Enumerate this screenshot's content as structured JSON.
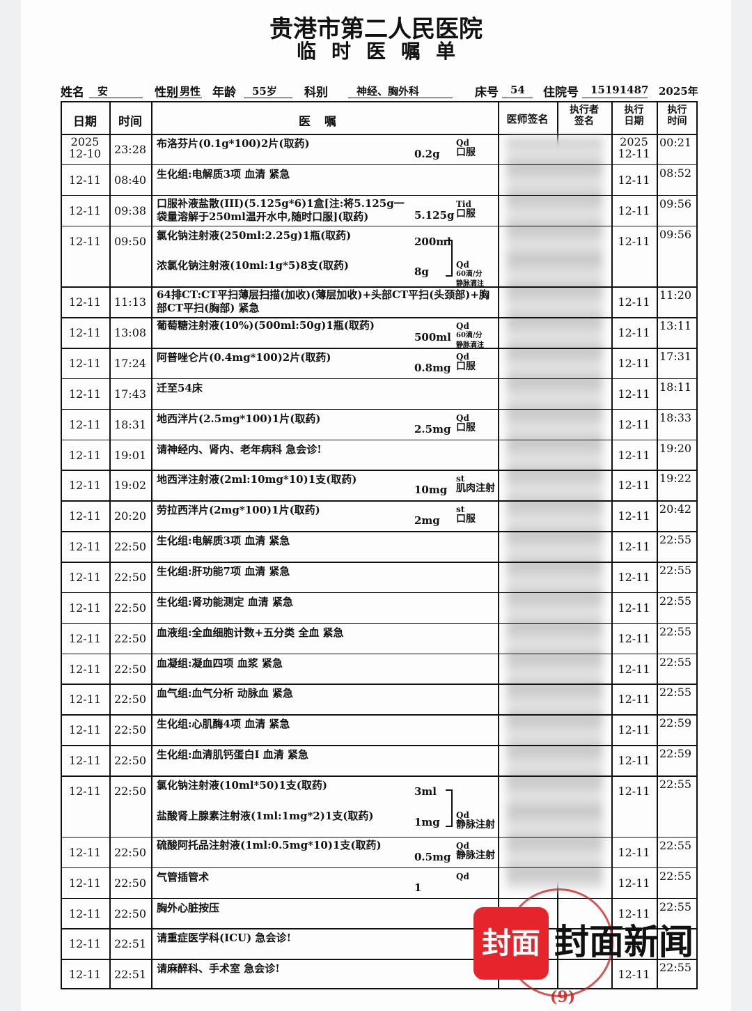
{
  "header": {
    "hospital": "贵港市第二人民医院",
    "form_title": "临时医嘱单"
  },
  "patient": [
    {
      "label": "姓名",
      "value": "安"
    },
    {
      "label": "性别",
      "value": "男性"
    },
    {
      "label": "年龄",
      "value": "55岁"
    },
    {
      "label": "科别",
      "value": "神经、胸外科"
    },
    {
      "label": "床号",
      "value": "54"
    },
    {
      "label": "住院号",
      "value": "15191487"
    },
    {
      "value": "2025年"
    }
  ],
  "table": {
    "columns": [
      "日期",
      "时间",
      "医嘱",
      "医师签名",
      "执行者签名",
      "执行日期",
      "执行时间"
    ],
    "rows": [
      {
        "date": [
          "2025",
          "12-10"
        ],
        "time": "23:28",
        "orders": [
          {
            "text": "布洛芬片(0.1g*100)2片(取药)",
            "dose": "0.2g"
          }
        ],
        "usage": [
          "Qd",
          "口服"
        ],
        "exec_date": [
          "2025",
          "12-11"
        ],
        "exec_time": "00:21"
      },
      {
        "date": [
          "12-11"
        ],
        "time": "08:40",
        "orders": [
          {
            "text": "生化组:电解质3项 血清 紧急"
          }
        ],
        "exec_date": [
          "12-11"
        ],
        "exec_time": "08:52"
      },
      {
        "date": [
          "12-11"
        ],
        "time": "09:38",
        "orders": [
          {
            "text": "口服补液盐散(III)(5.125g*6)1盒[注:将5.125g一袋量溶解于250ml温开水中,随时口服](取药)",
            "dose": "5.125g"
          }
        ],
        "usage": [
          "Tid",
          "口服"
        ],
        "exec_date": [
          "12-11"
        ],
        "exec_time": "09:56"
      },
      {
        "date": [
          "12-11"
        ],
        "time": "09:50",
        "orders": [
          {
            "text": "氯化钠注射液(250ml:2.25g)1瓶(取药)",
            "dose": "200ml"
          },
          {
            "text": "浓氯化钠注射液(10ml:1g*5)8支(取药)",
            "dose": "8g"
          }
        ],
        "usage": [
          "Qd",
          "60滴/分",
          "静脉滴注"
        ],
        "exec_date": [
          "12-11"
        ],
        "exec_time": "09:56"
      },
      {
        "date": [
          "12-11"
        ],
        "time": "11:13",
        "orders": [
          {
            "text": "64排CT:CT平扫薄层扫描(加收)(薄层加收)+头部CT平扫(头颈部)+胸部CT平扫(胸部) 紧急"
          }
        ],
        "exec_date": [
          "12-11"
        ],
        "exec_time": "11:20"
      },
      {
        "date": [
          "12-11"
        ],
        "time": "13:08",
        "orders": [
          {
            "text": "葡萄糖注射液(10%)(500ml:50g)1瓶(取药)",
            "dose": "500ml"
          }
        ],
        "usage": [
          "Qd",
          "60滴/分",
          "静脉滴注"
        ],
        "exec_date": [
          "12-11"
        ],
        "exec_time": "13:11"
      },
      {
        "date": [
          "12-11"
        ],
        "time": "17:24",
        "orders": [
          {
            "text": "阿普唑仑片(0.4mg*100)2片(取药)",
            "dose": "0.8mg"
          }
        ],
        "usage": [
          "Qd",
          "口服"
        ],
        "exec_date": [
          "12-11"
        ],
        "exec_time": "17:31"
      },
      {
        "date": [
          "12-11"
        ],
        "time": "17:43",
        "orders": [
          {
            "text": "迁至54床"
          }
        ],
        "exec_date": [
          "12-11"
        ],
        "exec_time": "18:11"
      },
      {
        "date": [
          "12-11"
        ],
        "time": "18:31",
        "orders": [
          {
            "text": "地西泮片(2.5mg*100)1片(取药)",
            "dose": "2.5mg"
          }
        ],
        "usage": [
          "Qd",
          "口服"
        ],
        "exec_date": [
          "12-11"
        ],
        "exec_time": "18:33"
      },
      {
        "date": [
          "12-11"
        ],
        "time": "19:01",
        "orders": [
          {
            "text": "请神经内、肾内、老年病科 急会诊!"
          }
        ],
        "exec_date": [
          "12-11"
        ],
        "exec_time": "19:20"
      },
      {
        "date": [
          "12-11"
        ],
        "time": "19:02",
        "orders": [
          {
            "text": "地西泮注射液(2ml:10mg*10)1支(取药)",
            "dose": "10mg"
          }
        ],
        "usage": [
          "st",
          "肌肉注射"
        ],
        "exec_date": [
          "12-11"
        ],
        "exec_time": "19:22"
      },
      {
        "date": [
          "12-11"
        ],
        "time": "20:20",
        "orders": [
          {
            "text": "劳拉西泮片(2mg*100)1片(取药)",
            "dose": "2mg"
          }
        ],
        "usage": [
          "st",
          "口服"
        ],
        "exec_date": [
          "12-11"
        ],
        "exec_time": "20:42"
      },
      {
        "date": [
          "12-11"
        ],
        "time": "22:50",
        "orders": [
          {
            "text": "生化组:电解质3项 血清 紧急"
          }
        ],
        "exec_date": [
          "12-11"
        ],
        "exec_time": "22:55"
      },
      {
        "date": [
          "12-11"
        ],
        "time": "22:50",
        "orders": [
          {
            "text": "生化组:肝功能7项 血清 紧急"
          }
        ],
        "exec_date": [
          "12-11"
        ],
        "exec_time": "22:55"
      },
      {
        "date": [
          "12-11"
        ],
        "time": "22:50",
        "orders": [
          {
            "text": "生化组:肾功能测定 血清 紧急"
          }
        ],
        "exec_date": [
          "12-11"
        ],
        "exec_time": "22:55"
      },
      {
        "date": [
          "12-11"
        ],
        "time": "22:50",
        "orders": [
          {
            "text": "血液组:全血细胞计数+五分类 全血 紧急"
          }
        ],
        "exec_date": [
          "12-11"
        ],
        "exec_time": "22:55"
      },
      {
        "date": [
          "12-11"
        ],
        "time": "22:50",
        "orders": [
          {
            "text": "血凝组:凝血四项 血浆 紧急"
          }
        ],
        "exec_date": [
          "12-11"
        ],
        "exec_time": "22:55"
      },
      {
        "date": [
          "12-11"
        ],
        "time": "22:50",
        "orders": [
          {
            "text": "血气组:血气分析 动脉血 紧急"
          }
        ],
        "exec_date": [
          "12-11"
        ],
        "exec_time": "22:55"
      },
      {
        "date": [
          "12-11"
        ],
        "time": "22:50",
        "orders": [
          {
            "text": "生化组:心肌酶4项 血清 紧急"
          }
        ],
        "exec_date": [
          "12-11"
        ],
        "exec_time": "22:59"
      },
      {
        "date": [
          "12-11"
        ],
        "time": "22:50",
        "orders": [
          {
            "text": "生化组:血清肌钙蛋白I 血清 紧急"
          }
        ],
        "exec_date": [
          "12-11"
        ],
        "exec_time": "22:59"
      },
      {
        "date": [
          "12-11"
        ],
        "time": "22:50",
        "orders": [
          {
            "text": "氯化钠注射液(10ml*50)1支(取药)",
            "dose": "3ml"
          },
          {
            "text": "盐酸肾上腺素注射液(1ml:1mg*2)1支(取药)",
            "dose": "1mg"
          }
        ],
        "usage": [
          "Qd",
          "静脉注射"
        ],
        "exec_date": [
          "12-11"
        ],
        "exec_time": "22:55"
      },
      {
        "date": [
          "12-11"
        ],
        "time": "22:50",
        "orders": [
          {
            "text": "硫酸阿托品注射液(1ml:0.5mg*10)1支(取药)",
            "dose": "0.5mg"
          }
        ],
        "usage": [
          "Qd",
          "静脉注射"
        ],
        "exec_date": [
          "12-11"
        ],
        "exec_time": "22:55"
      },
      {
        "date": [
          "12-11"
        ],
        "time": "22:50",
        "orders": [
          {
            "text": "气管插管术",
            "dose": "1"
          }
        ],
        "usage": [
          "Qd"
        ],
        "exec_date": [
          "12-11"
        ],
        "exec_time": "22:55"
      },
      {
        "date": [
          "12-11"
        ],
        "time": "22:50",
        "orders": [
          {
            "text": "胸外心脏按压"
          }
        ],
        "exec_date": [
          "12-11"
        ],
        "exec_time": "22:55"
      },
      {
        "date": [
          "12-11"
        ],
        "time": "22:51",
        "orders": [
          {
            "text": "请重症医学科(ICU) 急会诊!"
          }
        ]
      },
      {
        "date": [
          "12-11"
        ],
        "time": "22:51",
        "orders": [
          {
            "text": "请麻醉科、手术室 急会诊!"
          }
        ],
        "exec_date": [
          "12-11"
        ],
        "exec_time": "22:55"
      }
    ]
  },
  "watermark": {
    "logo": "封面",
    "brand": "封面新闻",
    "stamp": "(9)"
  }
}
